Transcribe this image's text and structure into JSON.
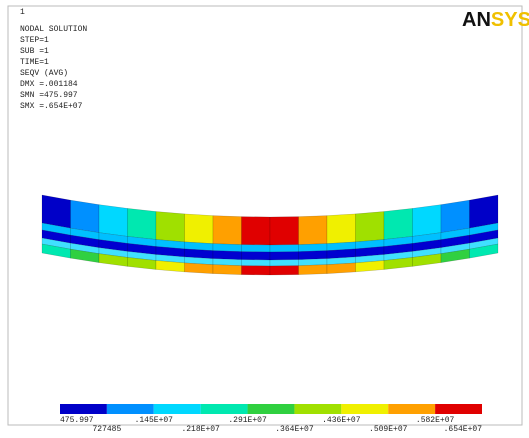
{
  "header": {
    "window_number": "1",
    "lines": [
      "NODAL SOLUTION",
      "STEP=1",
      "SUB =1",
      "TIME=1",
      "SEQV     (AVG)",
      "DMX =.001184",
      "SMN =475.997",
      "SMX =.654E+07"
    ]
  },
  "logo": {
    "left": "AN",
    "right": "SYS"
  },
  "legend": {
    "upper_labels": [
      "475.997",
      ".145E+07",
      ".291E+07",
      ".436E+07",
      ".582E+07"
    ],
    "lower_labels": [
      "727485",
      ".218E+07",
      ".364E+07",
      ".509E+07",
      ".654E+07"
    ]
  }
}
